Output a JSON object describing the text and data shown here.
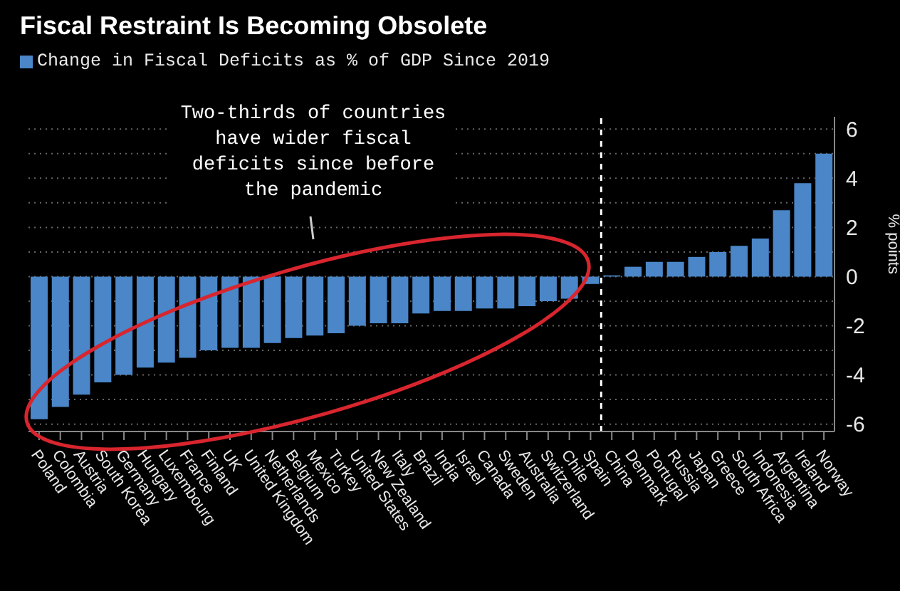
{
  "chart_data": {
    "type": "bar",
    "title": "Fiscal Restraint Is Becoming Obsolete",
    "ylabel": "% points",
    "categories": [
      "Poland",
      "Colombia",
      "Austria",
      "South Korea",
      "Germany",
      "Hungary",
      "Luxembourg",
      "France",
      "Finland",
      "UK",
      "United Kingdom",
      "Netherlands",
      "Belgium",
      "Mexico",
      "Turkey",
      "United States",
      "New Zealand",
      "Italy",
      "Brazil",
      "India",
      "Israel",
      "Canada",
      "Sweden",
      "Australia",
      "Switzerland",
      "Chile",
      "Spain",
      "China",
      "Denmark",
      "Portugal",
      "Russia",
      "Japan",
      "Greece",
      "South Africa",
      "Indonesia",
      "Argentina",
      "Ireland",
      "Norway"
    ],
    "series": [
      {
        "name": "Change in Fiscal Deficits as % of GDP Since 2019",
        "color": "#4a86c8",
        "values": [
          -5.8,
          -5.3,
          -4.8,
          -4.3,
          -4.0,
          -3.7,
          -3.5,
          -3.3,
          -3.0,
          -2.9,
          -2.9,
          -2.7,
          -2.5,
          -2.4,
          -2.3,
          -2.0,
          -1.9,
          -1.9,
          -1.5,
          -1.4,
          -1.4,
          -1.3,
          -1.3,
          -1.2,
          -1.0,
          -0.9,
          -0.3,
          0.05,
          0.4,
          0.6,
          0.6,
          0.8,
          1.0,
          1.25,
          1.55,
          2.7,
          3.8,
          5.0
        ]
      }
    ],
    "ylim": [
      -6.3,
      6.5
    ],
    "yticks": [
      -6,
      {
        "value": -5,
        "label": null
      },
      -4,
      {
        "value": -3,
        "label": null
      },
      -2,
      {
        "value": -1,
        "label": null
      },
      0,
      {
        "value": 1,
        "label": null
      },
      2,
      {
        "value": 3,
        "label": null
      },
      4,
      {
        "value": 5,
        "label": null
      },
      6
    ],
    "grid": "y",
    "legend": "top left",
    "ref_lines": [
      {
        "axis": "x",
        "value": "China",
        "line_style": "dashed",
        "color": "#ffffff"
      }
    ],
    "annotations": [
      "Two-thirds of countries have wider fiscal deficits since before the pandemic"
    ]
  }
}
